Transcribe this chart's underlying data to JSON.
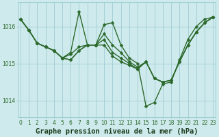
{
  "series": [
    [
      1016.2,
      1015.9,
      1015.55,
      1015.45,
      1015.35,
      1015.15,
      1015.3,
      1016.4,
      1015.5,
      1015.5,
      1016.05,
      1016.1,
      1015.5,
      1015.15,
      1015.0,
      1013.85,
      1013.95,
      1014.45,
      1014.5,
      1015.1,
      1015.65,
      1016.0,
      1016.2,
      1016.25
    ],
    [
      1016.2,
      1015.9,
      1015.55,
      1015.45,
      1015.35,
      1015.15,
      1015.25,
      1015.45,
      1015.5,
      1015.5,
      1015.8,
      1015.5,
      1015.3,
      1015.05,
      1014.9,
      1015.05,
      1014.6,
      1014.5,
      1014.55,
      1015.05,
      1015.5,
      1015.85,
      1016.1,
      1016.25
    ],
    [
      1016.2,
      1015.9,
      1015.55,
      1015.45,
      1015.35,
      1015.15,
      1015.1,
      1015.35,
      1015.5,
      1015.5,
      1015.65,
      1015.3,
      1015.15,
      1015.0,
      1014.85,
      1015.05,
      1014.6,
      1014.5,
      1014.55,
      1015.05,
      1015.5,
      1015.85,
      1016.1,
      1016.25
    ],
    [
      1016.2,
      1015.9,
      1015.55,
      1015.45,
      1015.35,
      1015.15,
      1015.1,
      1015.35,
      1015.5,
      1015.5,
      1015.5,
      1015.2,
      1015.05,
      1014.95,
      1014.85,
      1015.05,
      1014.6,
      1014.5,
      1014.55,
      1015.05,
      1015.5,
      1015.85,
      1016.1,
      1016.25
    ]
  ],
  "x": [
    0,
    1,
    2,
    3,
    4,
    5,
    6,
    7,
    8,
    9,
    10,
    11,
    12,
    13,
    14,
    15,
    16,
    17,
    18,
    19,
    20,
    21,
    22,
    23
  ],
  "xlim": [
    -0.3,
    23.3
  ],
  "ylim": [
    1013.55,
    1016.65
  ],
  "yticks": [
    1014,
    1015,
    1016
  ],
  "xticks": [
    0,
    1,
    2,
    3,
    4,
    5,
    6,
    7,
    8,
    9,
    10,
    11,
    12,
    13,
    14,
    15,
    16,
    17,
    18,
    19,
    20,
    21,
    22,
    23
  ],
  "line_color": "#2d6a2d",
  "marker_color": "#2d6a2d",
  "bg_color": "#ceeaec",
  "grid_color": "#9ecdd4",
  "xlabel": "Graphe pression niveau de la mer (hPa)",
  "xlabel_color": "#1a3a1a",
  "axis_label_color": "#2d6a2d",
  "tick_label_fontsize": 5.5,
  "xlabel_fontsize": 7.5,
  "line_width": 1.0,
  "marker_size": 2.5
}
